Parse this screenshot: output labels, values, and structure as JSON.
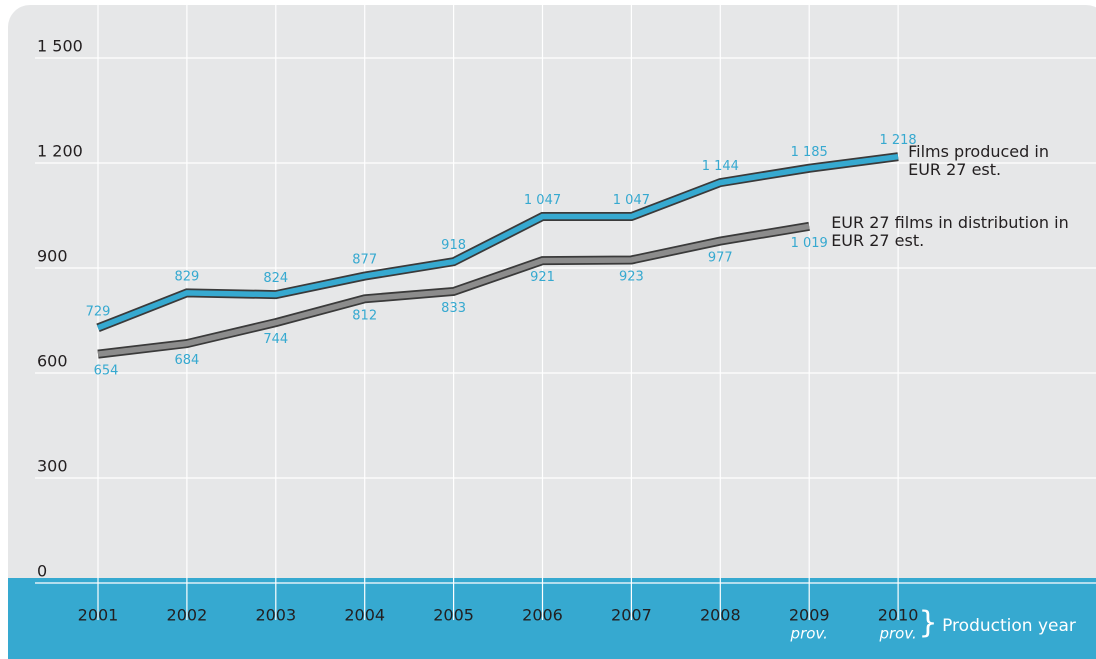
{
  "chart_data": {
    "type": "line",
    "categories": [
      "2001",
      "2002",
      "2003",
      "2004",
      "2005",
      "2006",
      "2007",
      "2008",
      "2009",
      "2010"
    ],
    "category_notes": [
      null,
      null,
      null,
      null,
      null,
      null,
      null,
      null,
      "prov.",
      "prov."
    ],
    "x_label": "Production year",
    "series": [
      {
        "name": "Films produced in EUR 27 est.",
        "color": "#36a9d0",
        "values": [
          729,
          829,
          824,
          877,
          918,
          1047,
          1047,
          1144,
          1185,
          1218
        ],
        "value_labels": [
          "729",
          "829",
          "824",
          "877",
          "918",
          "1 047",
          "1 047",
          "1 144",
          "1 185",
          "1 218"
        ]
      },
      {
        "name": "EUR 27 films in distribution in EUR 27 est.",
        "color": "#8c8c8c",
        "values": [
          654,
          684,
          744,
          812,
          833,
          921,
          923,
          977,
          1019,
          null
        ],
        "value_labels": [
          "654",
          "684",
          "744",
          "812",
          "833",
          "921",
          "923",
          "977",
          "1 019",
          null
        ]
      }
    ],
    "ylim": [
      0,
      1500
    ],
    "yticks": [
      0,
      300,
      600,
      900,
      {
        "value": 1200,
        "label": "1 200"
      },
      {
        "value": 1500,
        "label": "1 500"
      }
    ],
    "grid": true
  }
}
